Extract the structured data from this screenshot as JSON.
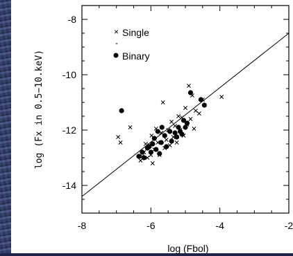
{
  "chart_data": {
    "type": "scatter",
    "title": "",
    "xlabel": "log (Fbol)",
    "ylabel": "log (Fx in 0.5−10.keV)",
    "xlim": [
      -8,
      -2
    ],
    "ylim": [
      -15,
      -7.5
    ],
    "xticks": [
      -8,
      -6,
      -4,
      -2
    ],
    "xtick_labels": [
      "-8",
      "-6",
      "-4",
      "-2"
    ],
    "yticks": [
      -8,
      -10,
      -12,
      -14
    ],
    "ytick_labels": [
      "-8",
      "-10",
      "-12",
      "-14"
    ],
    "legend": {
      "position": "top-left",
      "entries": [
        "Single",
        "Binary"
      ],
      "separator": "-"
    },
    "fit_line": {
      "x": [
        -8,
        -2
      ],
      "y": [
        -14.4,
        -8.5
      ]
    },
    "series": [
      {
        "name": "Single",
        "marker": "x",
        "points": [
          [
            -6.95,
            -12.25
          ],
          [
            -6.88,
            -12.45
          ],
          [
            -6.6,
            -11.9
          ],
          [
            -6.3,
            -13.1
          ],
          [
            -6.25,
            -12.95
          ],
          [
            -6.2,
            -12.8
          ],
          [
            -6.15,
            -12.5
          ],
          [
            -6.1,
            -13.0
          ],
          [
            -6.05,
            -12.55
          ],
          [
            -6.0,
            -12.9
          ],
          [
            -5.98,
            -12.2
          ],
          [
            -5.95,
            -13.2
          ],
          [
            -5.9,
            -12.7
          ],
          [
            -5.85,
            -11.95
          ],
          [
            -5.8,
            -12.45
          ],
          [
            -5.75,
            -12.9
          ],
          [
            -5.7,
            -12.1
          ],
          [
            -5.65,
            -11.0
          ],
          [
            -5.6,
            -12.65
          ],
          [
            -5.55,
            -12.35
          ],
          [
            -5.5,
            -12.0
          ],
          [
            -5.45,
            -12.55
          ],
          [
            -5.4,
            -11.7
          ],
          [
            -5.35,
            -12.25
          ],
          [
            -5.3,
            -11.85
          ],
          [
            -5.25,
            -12.45
          ],
          [
            -5.2,
            -11.5
          ],
          [
            -5.15,
            -12.0
          ],
          [
            -5.1,
            -11.55
          ],
          [
            -5.05,
            -12.2
          ],
          [
            -5.0,
            -11.2
          ],
          [
            -4.95,
            -11.8
          ],
          [
            -4.9,
            -10.4
          ],
          [
            -4.85,
            -11.6
          ],
          [
            -4.8,
            -10.75
          ],
          [
            -4.75,
            -11.95
          ],
          [
            -4.7,
            -11.3
          ],
          [
            -4.6,
            -11.4
          ],
          [
            -4.5,
            -10.9
          ],
          [
            -3.95,
            -10.8
          ]
        ]
      },
      {
        "name": "Binary",
        "marker": "dot",
        "points": [
          [
            -6.85,
            -11.3
          ],
          [
            -6.35,
            -12.95
          ],
          [
            -6.25,
            -12.8
          ],
          [
            -6.2,
            -13.0
          ],
          [
            -6.1,
            -12.65
          ],
          [
            -6.05,
            -12.6
          ],
          [
            -6.0,
            -12.8
          ],
          [
            -5.95,
            -12.5
          ],
          [
            -5.9,
            -12.3
          ],
          [
            -5.85,
            -12.7
          ],
          [
            -5.8,
            -12.05
          ],
          [
            -5.75,
            -12.85
          ],
          [
            -5.7,
            -12.45
          ],
          [
            -5.68,
            -11.9
          ],
          [
            -5.6,
            -12.2
          ],
          [
            -5.55,
            -12.6
          ],
          [
            -5.45,
            -12.05
          ],
          [
            -5.4,
            -12.4
          ],
          [
            -5.3,
            -12.1
          ],
          [
            -5.25,
            -12.25
          ],
          [
            -5.2,
            -11.9
          ],
          [
            -5.15,
            -12.05
          ],
          [
            -5.1,
            -12.15
          ],
          [
            -5.05,
            -11.65
          ],
          [
            -5.0,
            -11.9
          ],
          [
            -4.95,
            -11.75
          ],
          [
            -4.85,
            -10.65
          ],
          [
            -4.55,
            -10.9
          ],
          [
            -4.45,
            -11.1
          ]
        ]
      }
    ]
  }
}
